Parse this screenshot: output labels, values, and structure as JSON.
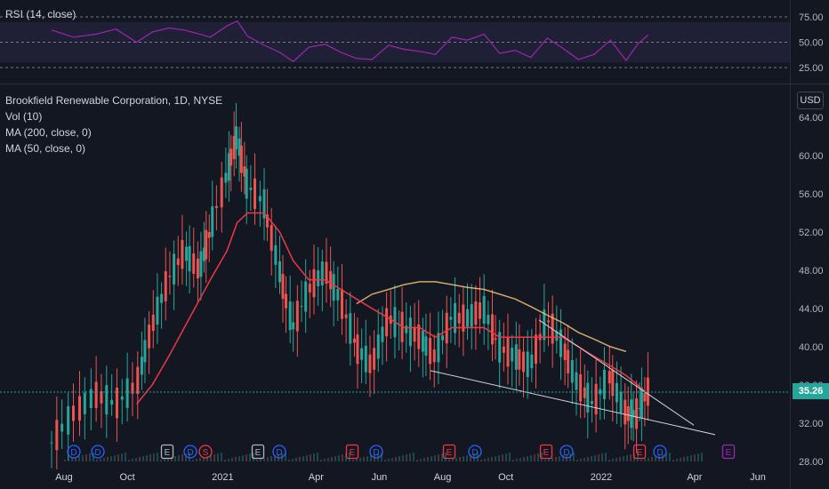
{
  "rsi": {
    "title": "RSI (14, close)",
    "levels": [
      "75.00",
      "50.00",
      "25.00"
    ]
  },
  "main": {
    "title": "Brookfield Renewable Corporation, 1D, NYSE",
    "studies": [
      "Vol (10)",
      "MA (200, close, 0)",
      "MA (50, close, 0)"
    ],
    "currency": "USD",
    "last_price": "35.26",
    "last_price_color": "#26a69a",
    "price_axis": [
      "64.00",
      "60.00",
      "56.00",
      "52.00",
      "48.00",
      "44.00",
      "40.00",
      "36.00",
      "32.00",
      "28.00"
    ],
    "date_axis": [
      "Aug",
      "Oct",
      "2021",
      "Apr",
      "Jun",
      "Aug",
      "Oct",
      "2022",
      "Apr",
      "Jun"
    ]
  },
  "events": [
    {
      "type": "D",
      "color": "#2962ff"
    },
    {
      "type": "D",
      "color": "#2962ff"
    },
    {
      "type": "E",
      "color": "#b2b5be"
    },
    {
      "type": "D",
      "color": "#2962ff"
    },
    {
      "type": "S",
      "color": "#f23645"
    },
    {
      "type": "E",
      "color": "#b2b5be"
    },
    {
      "type": "D",
      "color": "#2962ff"
    },
    {
      "type": "E",
      "color": "#f23645"
    },
    {
      "type": "D",
      "color": "#2962ff"
    },
    {
      "type": "E",
      "color": "#f23645"
    },
    {
      "type": "D",
      "color": "#2962ff"
    },
    {
      "type": "E",
      "color": "#f23645"
    },
    {
      "type": "D",
      "color": "#2962ff"
    },
    {
      "type": "E",
      "color": "#f23645"
    },
    {
      "type": "D",
      "color": "#2962ff"
    },
    {
      "type": "E",
      "color": "#9c27b0"
    }
  ],
  "chart_data": {
    "type": "line",
    "title": "Brookfield Renewable Corporation, 1D, NYSE",
    "x": [
      "2020-07-20",
      "2020-08-10",
      "2020-09-01",
      "2020-09-20",
      "2020-10-10",
      "2020-10-25",
      "2020-11-10",
      "2020-11-25",
      "2020-12-10",
      "2020-12-20",
      "2021-01-05",
      "2021-01-15",
      "2021-01-25",
      "2021-02-10",
      "2021-02-25",
      "2021-03-10",
      "2021-03-25",
      "2021-04-10",
      "2021-04-25",
      "2021-05-10",
      "2021-05-25",
      "2021-06-10",
      "2021-06-25",
      "2021-07-10",
      "2021-07-25",
      "2021-08-10",
      "2021-08-25",
      "2021-09-10",
      "2021-09-25",
      "2021-10-10",
      "2021-10-25",
      "2021-11-10",
      "2021-11-25",
      "2021-12-10",
      "2021-12-25",
      "2022-01-10",
      "2022-01-25",
      "2022-02-05",
      "2022-02-15"
    ],
    "series": [
      {
        "name": "Price",
        "values": [
          30,
          33,
          35,
          34,
          36,
          42,
          47,
          50,
          48,
          52,
          58,
          62,
          57,
          55,
          48,
          42,
          46,
          48,
          45,
          40,
          38,
          43,
          42,
          41,
          39,
          43,
          43,
          44,
          40,
          39,
          38,
          43,
          40,
          36,
          34,
          37,
          33,
          33,
          35.3
        ]
      },
      {
        "name": "MA (50, close, 0)",
        "values": [
          null,
          null,
          null,
          null,
          34,
          36,
          39,
          42,
          45,
          47,
          50,
          53,
          54,
          54,
          52,
          49,
          47,
          47,
          46,
          45,
          44,
          43,
          42,
          42,
          41,
          42,
          42,
          42,
          41,
          41,
          41,
          41,
          41,
          40,
          39,
          38,
          37,
          36,
          35
        ]
      },
      {
        "name": "MA (200, close, 0)",
        "values": [
          null,
          null,
          null,
          null,
          null,
          null,
          null,
          null,
          null,
          null,
          null,
          null,
          null,
          null,
          null,
          null,
          null,
          null,
          null,
          44.5,
          45.5,
          46,
          46.5,
          46.8,
          46.8,
          46.5,
          46.2,
          46,
          45.5,
          45,
          44.2,
          43.3,
          42.5,
          41.5,
          40.8,
          40,
          39.5,
          null,
          null
        ]
      },
      {
        "name": "RSI (14, close)",
        "values": [
          62,
          55,
          58,
          63,
          50,
          60,
          64,
          62,
          58,
          55,
          66,
          71,
          56,
          47,
          40,
          31,
          45,
          48,
          40,
          34,
          33,
          47,
          43,
          41,
          38,
          55,
          52,
          58,
          39,
          42,
          35,
          54,
          44,
          33,
          38,
          52,
          32,
          48,
          57
        ]
      }
    ],
    "ylabel": "USD",
    "ylim": [
      28,
      66
    ],
    "rsi_ylim": [
      20,
      85
    ]
  }
}
